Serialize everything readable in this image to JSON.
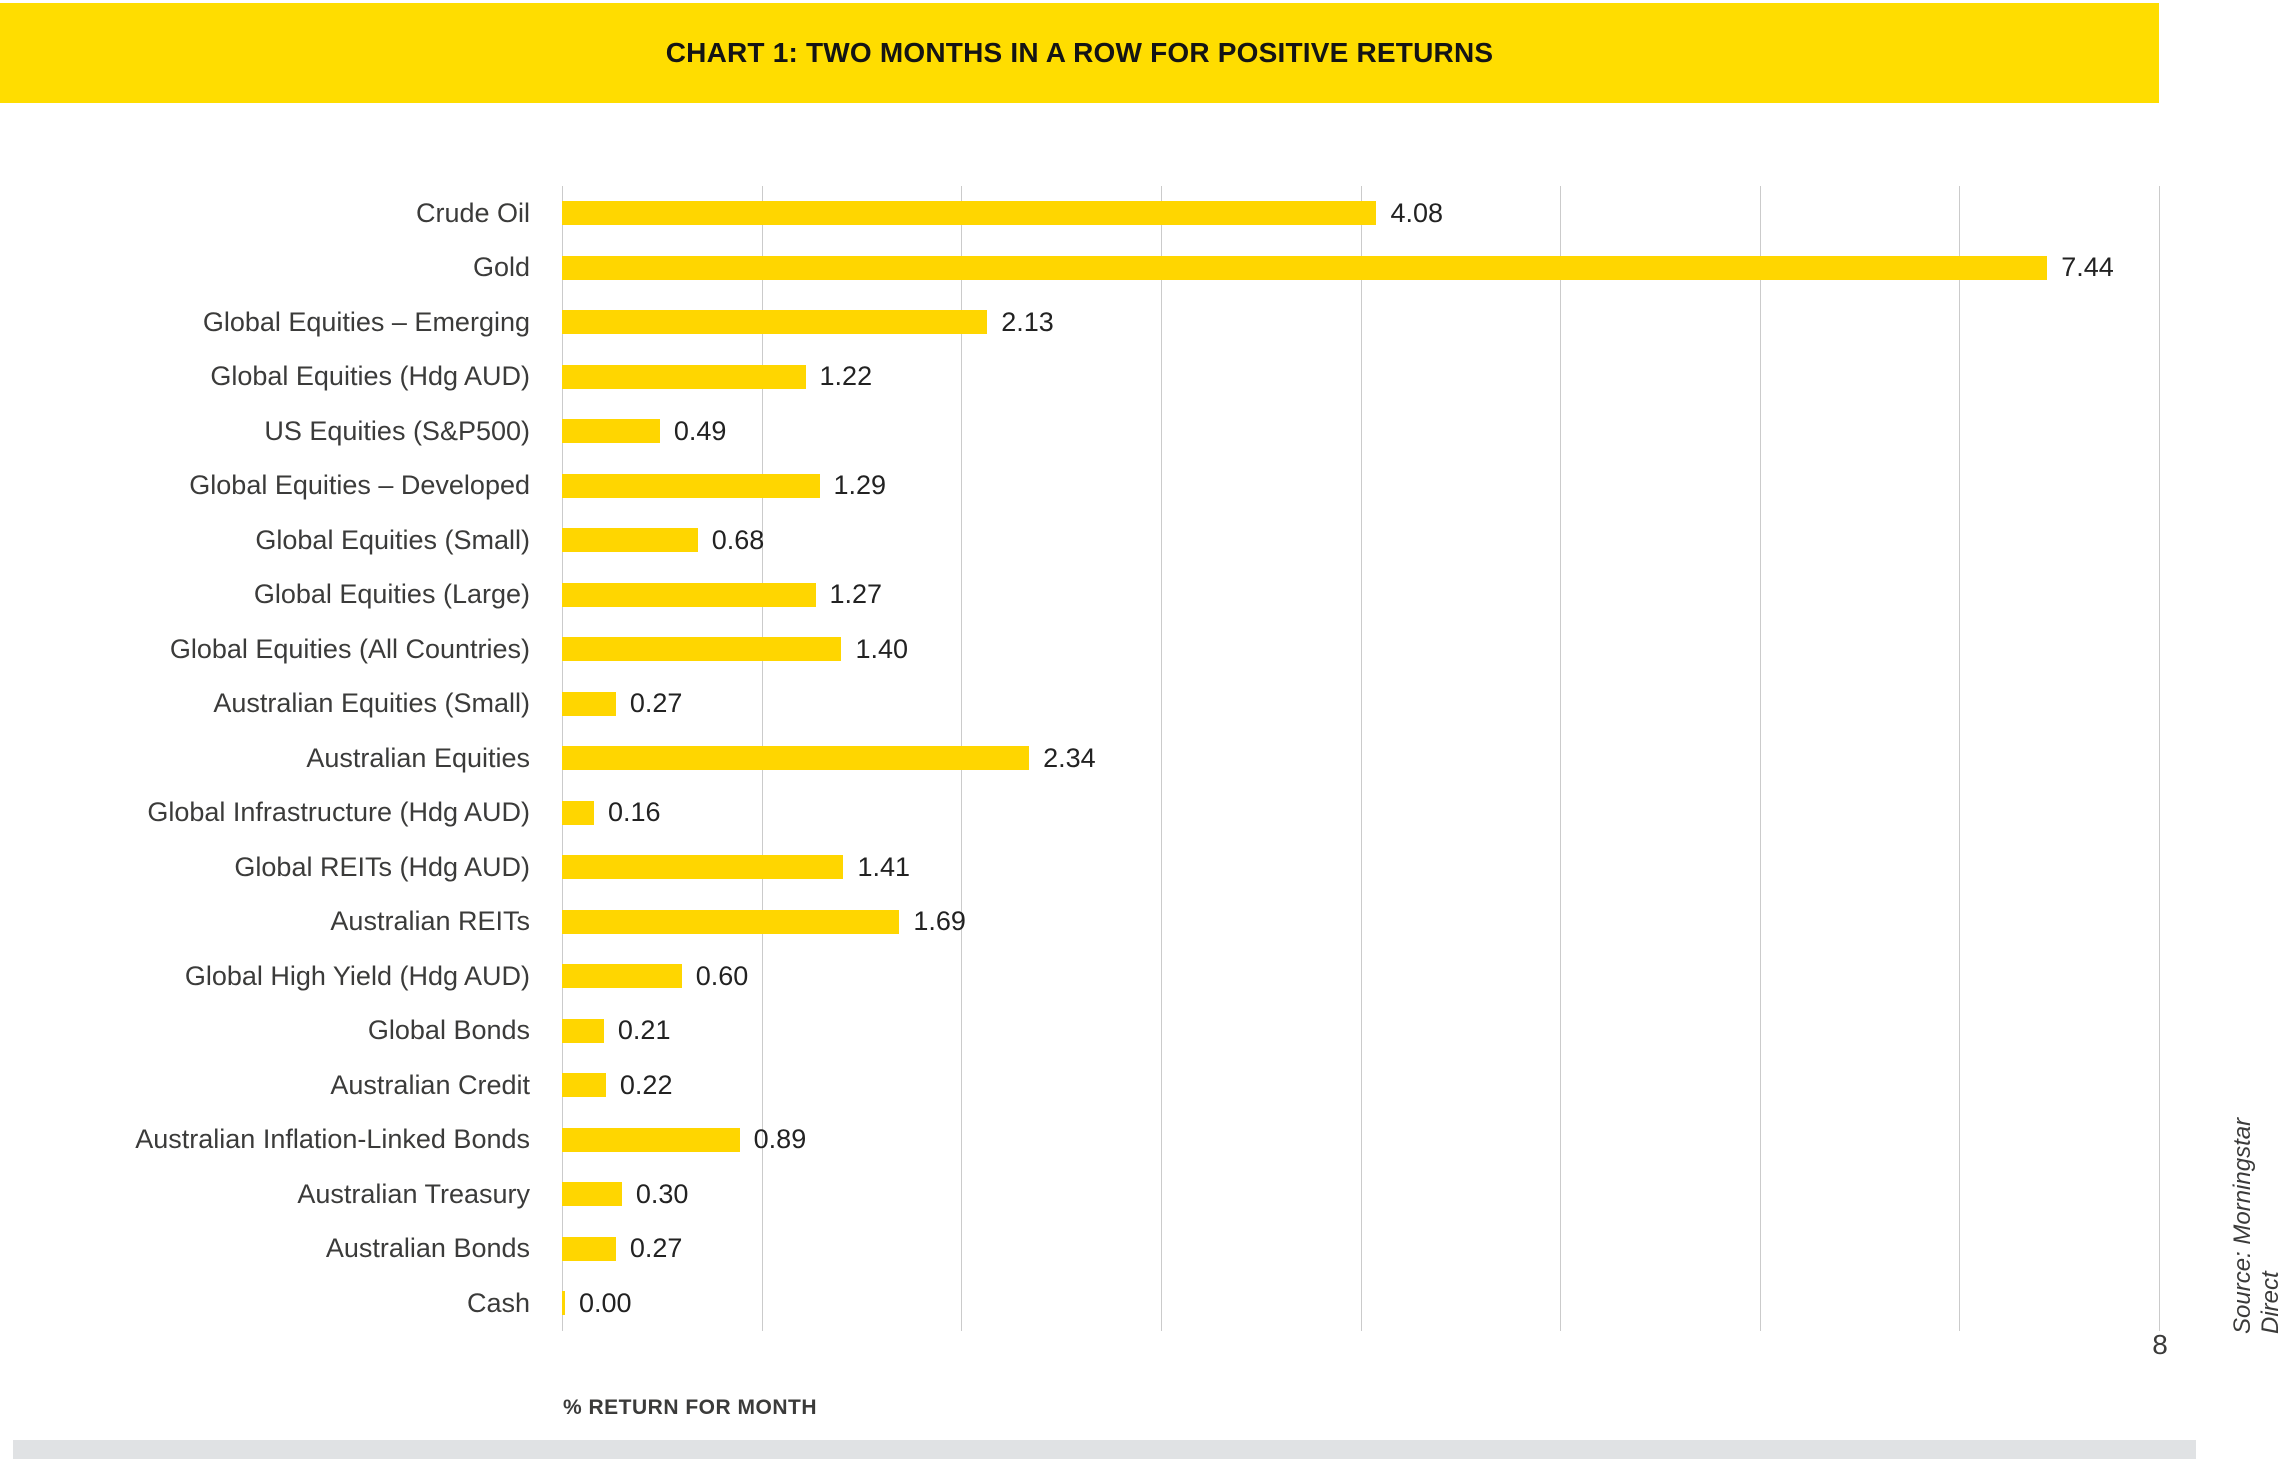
{
  "banner": {
    "title": "CHART 1: TWO MONTHS IN A ROW FOR POSITIVE RETURNS",
    "bg_color": "#FFDD00"
  },
  "chart_data": {
    "type": "bar",
    "orientation": "horizontal",
    "title": "CHART 1: TWO MONTHS IN A ROW FOR POSITIVE RETURNS",
    "xlabel": "% RETURN FOR MONTH",
    "xlim": [
      0,
      8
    ],
    "gridline_values": [
      0,
      1,
      2,
      3,
      4,
      5,
      6,
      7,
      8
    ],
    "visible_axis_tick_label": "8",
    "grid_on": true,
    "bar_color": "#FFD600",
    "grid_color": "#CBCBCB",
    "categories": [
      "Crude Oil",
      "Gold",
      "Global Equities – Emerging",
      "Global Equities (Hdg AUD)",
      "US Equities (S&P500)",
      "Global Equities – Developed",
      "Global Equities (Small)",
      "Global Equities (Large)",
      "Global Equities (All Countries)",
      "Australian Equities (Small)",
      "Australian Equities",
      "Global Infrastructure (Hdg AUD)",
      "Global REITs (Hdg AUD)",
      "Australian REITs",
      "Global High Yield (Hdg AUD)",
      "Global Bonds",
      "Australian Credit",
      "Australian Inflation-Linked Bonds",
      "Australian Treasury",
      "Australian Bonds",
      "Cash"
    ],
    "values": [
      4.08,
      7.44,
      2.13,
      1.22,
      0.49,
      1.29,
      0.68,
      1.27,
      1.4,
      0.27,
      2.34,
      0.16,
      1.41,
      1.69,
      0.6,
      0.21,
      0.22,
      0.89,
      0.3,
      0.27,
      0.0
    ],
    "value_labels": [
      "4.08",
      "7.44",
      "2.13",
      "1.22",
      "0.49",
      "1.29",
      "0.68",
      "1.27",
      "1.40",
      "0.27",
      "2.34",
      "0.16",
      "1.41",
      "1.69",
      "0.60",
      "0.21",
      "0.22",
      "0.89",
      "0.30",
      "0.27",
      "0.00"
    ]
  },
  "source_note": "Source: Morningstar Direct",
  "page_number": "8"
}
